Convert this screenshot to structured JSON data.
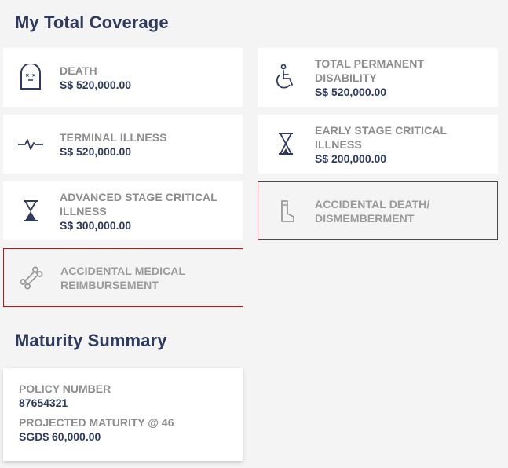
{
  "coverage": {
    "title": "My Total Coverage",
    "cards": [
      {
        "label": "DEATH",
        "value": "S$ 520,000.00",
        "icon": "tombstone-icon"
      },
      {
        "label": "TOTAL PERMANENT DISABILITY",
        "value": "S$ 520,000.00",
        "icon": "wheelchair-icon"
      },
      {
        "label": "TERMINAL ILLNESS",
        "value": "S$ 520,000.00",
        "icon": "heartbeat-icon"
      },
      {
        "label": "EARLY STAGE CRITICAL ILLNESS",
        "value": "S$ 200,000.00",
        "icon": "hourglass-empty-icon"
      },
      {
        "label": "ADVANCED STAGE CRITICAL ILLNESS",
        "value": "S$ 300,000.00",
        "icon": "hourglass-full-icon"
      },
      {
        "label": "ACCIDENTAL DEATH/ DISMEMBERMENT",
        "value": "",
        "icon": "leg-cast-icon"
      },
      {
        "label": "ACCIDENTAL MEDICAL REIMBURSEMENT",
        "value": "",
        "icon": "bone-icon"
      }
    ]
  },
  "maturity": {
    "title": "Maturity Summary",
    "policy_number_label": "POLICY NUMBER",
    "policy_number": "87654321",
    "projected_label": "PROJECTED MATURITY @ 46",
    "projected_value": "SGD$ 60,000.00"
  },
  "colors": {
    "title": "#2e3a5f",
    "label": "#8d8d8d",
    "value": "#2e3a5f",
    "inactive_border": "#8e2b2b",
    "background": "#f4f4f4"
  }
}
